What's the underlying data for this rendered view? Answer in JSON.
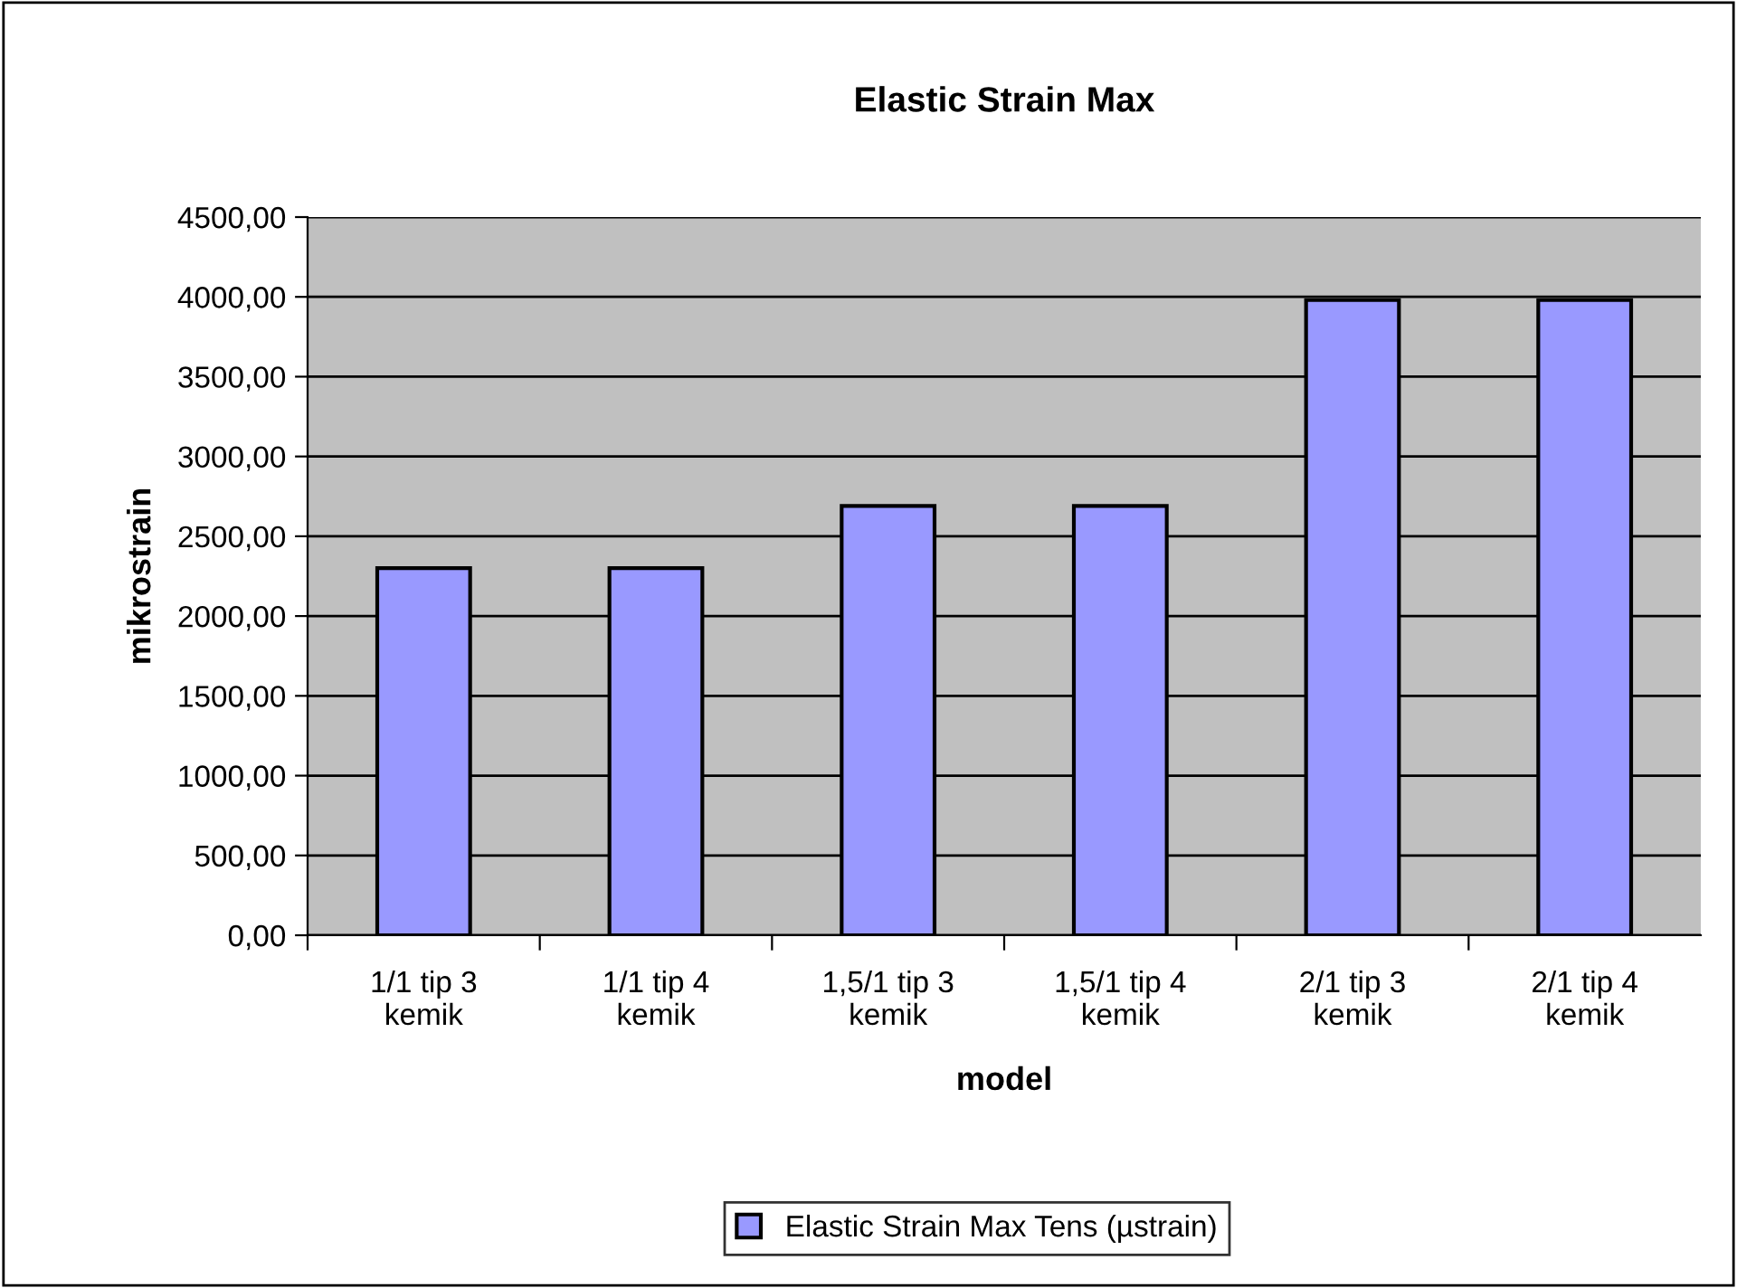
{
  "chart_data": {
    "type": "bar",
    "title": "Elastic Strain Max",
    "xlabel": "model",
    "ylabel": "mikrostrain",
    "categories": [
      "1/1 tip 3\nkemik",
      "1/1 tip 4\nkemik",
      "1,5/1 tip 3\nkemik",
      "1,5/1 tip 4\nkemik",
      "2/1 tip 3\nkemik",
      "2/1 tip 4\nkemik"
    ],
    "series": [
      {
        "name": "Elastic Strain Max Tens (µstrain)",
        "color": "#9999ff",
        "values": [
          2300,
          2300,
          2690,
          2690,
          3980,
          3980
        ]
      }
    ],
    "ylim": [
      0,
      4500
    ],
    "yticks": [
      {
        "value": 0,
        "label": "0,00"
      },
      {
        "value": 500,
        "label": "500,00"
      },
      {
        "value": 1000,
        "label": "1000,00"
      },
      {
        "value": 1500,
        "label": "1500,00"
      },
      {
        "value": 2000,
        "label": "2000,00"
      },
      {
        "value": 2500,
        "label": "2500,00"
      },
      {
        "value": 3000,
        "label": "3000,00"
      },
      {
        "value": 3500,
        "label": "3500,00"
      },
      {
        "value": 4000,
        "label": "4000,00"
      },
      {
        "value": 4500,
        "label": "4500,00"
      }
    ],
    "grid": "y",
    "legend": "bottom"
  }
}
